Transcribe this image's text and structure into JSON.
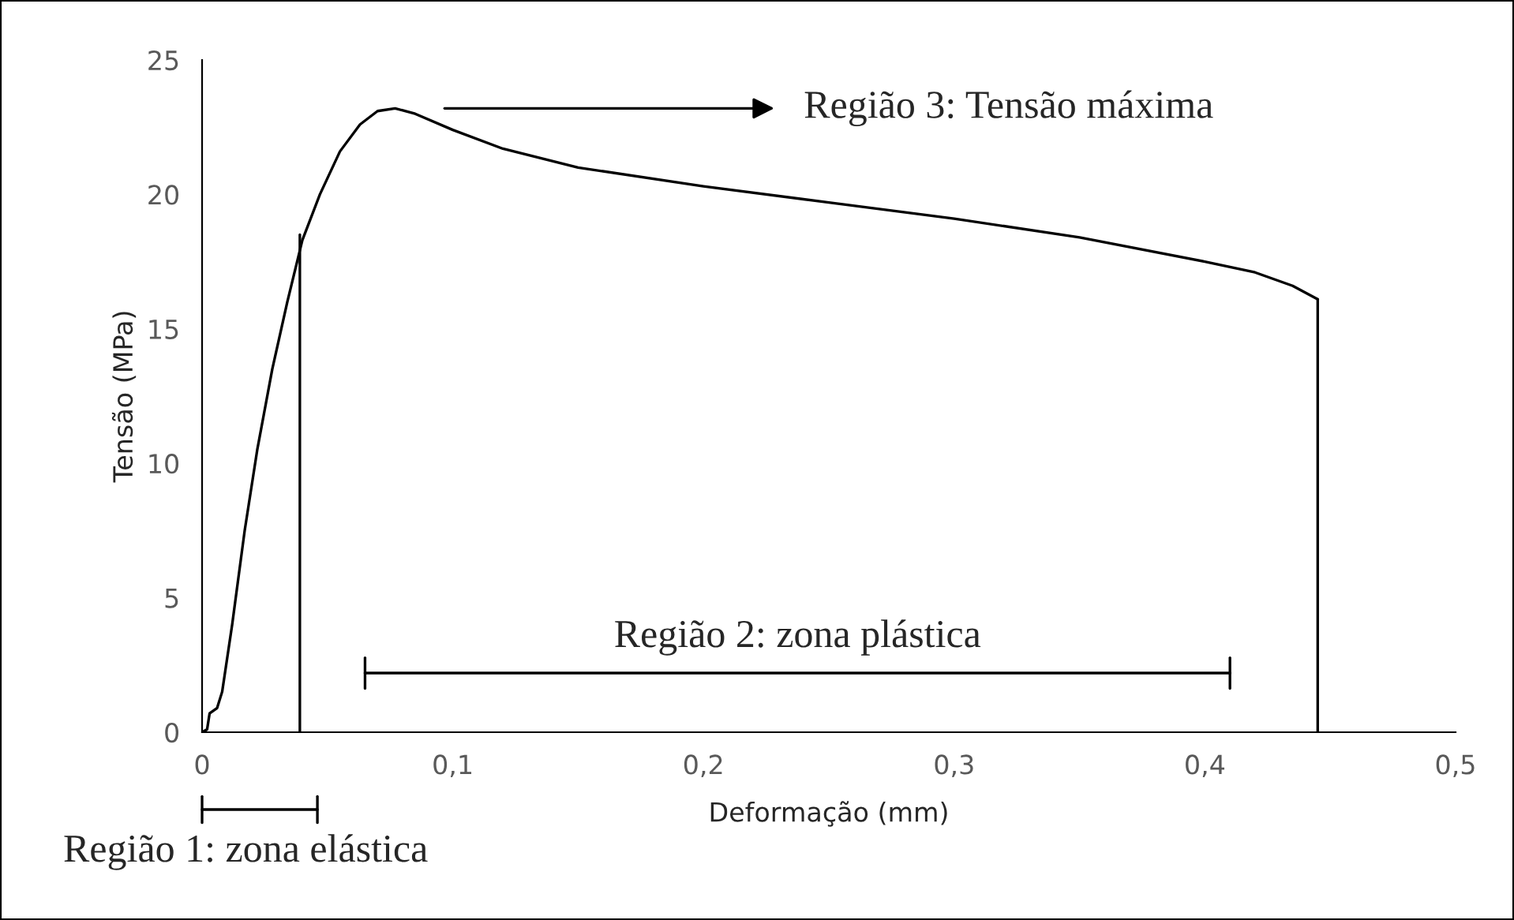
{
  "chart_data": {
    "type": "line",
    "xlabel": "Deformação (mm)",
    "ylabel": "Tensão (MPa)",
    "xlim": [
      0,
      0.5
    ],
    "ylim": [
      0,
      25
    ],
    "xticks": [
      0,
      {
        "value": 0.1,
        "label": "0,1"
      },
      {
        "value": 0.2,
        "label": "0,2"
      },
      {
        "value": 0.3,
        "label": "0,3"
      },
      {
        "value": 0.4,
        "label": "0,4"
      },
      {
        "value": 0.5,
        "label": "0,5"
      }
    ],
    "yticks": [
      0,
      5,
      10,
      15,
      20,
      25
    ],
    "grid": false,
    "legend": false,
    "series": [
      {
        "color": "#000000",
        "x": [
          0,
          0.002,
          0.003,
          0.006,
          0.008,
          0.012,
          0.017,
          0.022,
          0.028,
          0.034,
          0.04,
          0.047,
          0.055,
          0.063,
          0.07,
          0.077,
          0.085,
          0.1,
          0.12,
          0.15,
          0.2,
          0.25,
          0.3,
          0.35,
          0.4,
          0.42,
          0.435,
          0.445
        ],
        "values": [
          0,
          0.1,
          0.7,
          0.9,
          1.5,
          4,
          7.5,
          10.5,
          13.5,
          16,
          18.3,
          20,
          21.6,
          22.6,
          23.1,
          23.2,
          23.0,
          22.4,
          21.7,
          21.0,
          20.3,
          19.7,
          19.1,
          18.4,
          17.5,
          17.1,
          16.6,
          16.1
        ]
      },
      {
        "color": "#000000",
        "x": [
          0.039,
          0.039
        ],
        "values": [
          0,
          18.5
        ]
      },
      {
        "color": "#000000",
        "x": [
          0.445,
          0.445
        ],
        "values": [
          0,
          16.1
        ]
      },
      {
        "color": "#000000",
        "x": [
          0.065,
          0.41
        ],
        "values": [
          2.2,
          2.2
        ]
      }
    ],
    "annotations": [
      "Região 3: Tensão máxima",
      "Região 2: zona plástica",
      "Região 1: zona elástica"
    ]
  }
}
